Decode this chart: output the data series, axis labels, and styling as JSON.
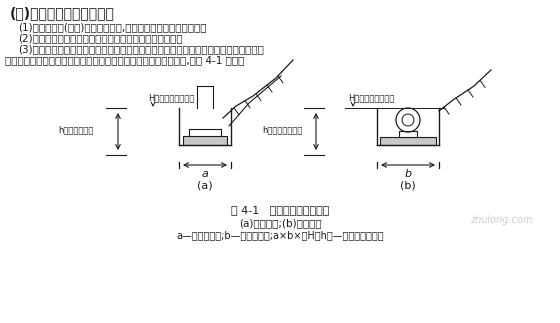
{
  "title": "(一)土石方工程量计算说明",
  "para1": "(1)填方以压实(夸实)后的体积计算,挖方以自然密实度体积计算。",
  "para2": "(2)挖一般土石方清单工程量按设计图示尺寸以体积计算。",
  "para3_1": "(3)挖沟槽和基坑土石方清单工程量按设计图示尺寸以基础庸层底面积乘以挖土石深度计",
  "para3_2": "算。其中挖土石深度为原地面平均标高至坑、槽底平均标高的深度,如图 4-1 所示。",
  "fig_caption1": "图 4-1   挖沟槽和基坑土石方",
  "fig_caption2": "(a)基坑挖方;(b)沟槽挖方",
  "fig_caption3": "a—桥台庸层宽;b—桥台庸层长;a×b×（H－h）—管沟挖方工程量",
  "label_a": "(a)",
  "label_b": "(b)",
  "label_H_a": "H原地面线平均标高",
  "label_h_a": "h坑底平均标高",
  "label_H_b": "H原地面线平均标高",
  "label_h_b": "h沟槽底平均标高",
  "dim_a": "a",
  "dim_b": "b",
  "bg_color": "#ffffff",
  "text_color": "#1a1a1a",
  "line_color": "#1a1a1a"
}
